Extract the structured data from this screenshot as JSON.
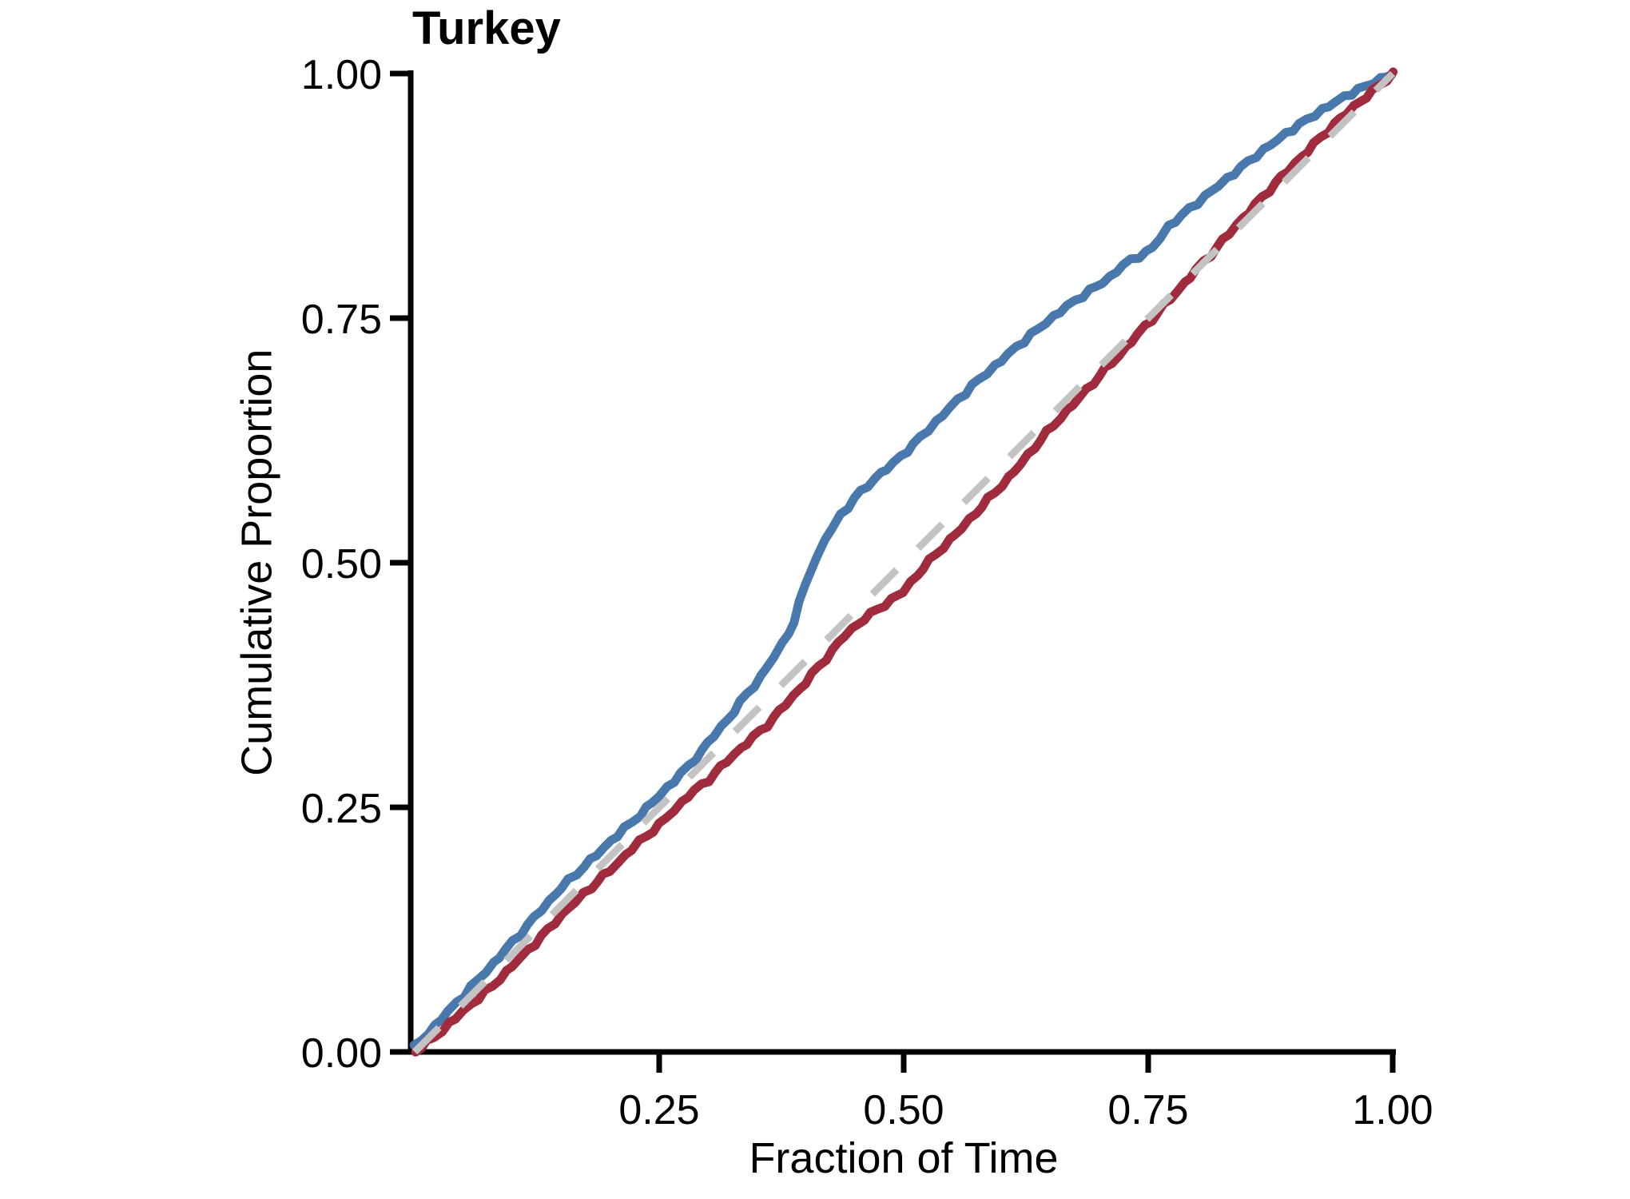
{
  "page": {
    "background": "#FFFFFF"
  },
  "chart": {
    "title": "Turkey",
    "xlabel": "Fraction of Time",
    "ylabel": "Cumulative Proportion",
    "x_ticks": [
      {
        "value": 0.25,
        "label": "0.25"
      },
      {
        "value": 0.5,
        "label": "0.50"
      },
      {
        "value": 0.75,
        "label": "0.75"
      },
      {
        "value": 1.0,
        "label": "1.00"
      }
    ],
    "y_ticks": [
      {
        "value": 0.0,
        "label": "0.00"
      },
      {
        "value": 0.25,
        "label": "0.25"
      },
      {
        "value": 0.5,
        "label": "0.50"
      },
      {
        "value": 0.75,
        "label": "0.75"
      },
      {
        "value": 1.0,
        "label": "1.00"
      }
    ],
    "colors": {
      "axis": "#000000",
      "blue_series": "#4878AC",
      "red_series": "#A02B3C",
      "reference_dashed": "#C3C3C3"
    }
  },
  "chart_data": {
    "type": "line",
    "title": "Turkey",
    "xlabel": "Fraction of Time",
    "ylabel": "Cumulative Proportion",
    "xlim": [
      0,
      1
    ],
    "ylim": [
      0,
      1
    ],
    "grid": false,
    "legend": "none",
    "x_tick_values": [
      0.25,
      0.5,
      0.75,
      1.0
    ],
    "y_tick_values": [
      0.0,
      0.25,
      0.5,
      0.75,
      1.0
    ],
    "reference_line": {
      "name": "diagonal-y-equals-x",
      "style": "dashed",
      "color": "#C3C3C3",
      "from": [
        0,
        0
      ],
      "to": [
        1,
        1
      ]
    },
    "series": [
      {
        "name": "blue",
        "color": "#4878AC",
        "points": [
          [
            0,
            0.005
          ],
          [
            0.02,
            0.026
          ],
          [
            0.05,
            0.058
          ],
          [
            0.08,
            0.09
          ],
          [
            0.1,
            0.112
          ],
          [
            0.13,
            0.146
          ],
          [
            0.15,
            0.168
          ],
          [
            0.18,
            0.196
          ],
          [
            0.2,
            0.215
          ],
          [
            0.23,
            0.242
          ],
          [
            0.25,
            0.262
          ],
          [
            0.28,
            0.292
          ],
          [
            0.3,
            0.316
          ],
          [
            0.32,
            0.34
          ],
          [
            0.34,
            0.366
          ],
          [
            0.36,
            0.392
          ],
          [
            0.375,
            0.416
          ],
          [
            0.388,
            0.44
          ],
          [
            0.4,
            0.478
          ],
          [
            0.41,
            0.505
          ],
          [
            0.42,
            0.524
          ],
          [
            0.435,
            0.548
          ],
          [
            0.45,
            0.566
          ],
          [
            0.47,
            0.586
          ],
          [
            0.49,
            0.602
          ],
          [
            0.51,
            0.621
          ],
          [
            0.54,
            0.651
          ],
          [
            0.57,
            0.681
          ],
          [
            0.6,
            0.707
          ],
          [
            0.63,
            0.733
          ],
          [
            0.66,
            0.757
          ],
          [
            0.69,
            0.778
          ],
          [
            0.71,
            0.791
          ],
          [
            0.725,
            0.805
          ],
          [
            0.74,
            0.813
          ],
          [
            0.755,
            0.822
          ],
          [
            0.77,
            0.843
          ],
          [
            0.8,
            0.868
          ],
          [
            0.83,
            0.892
          ],
          [
            0.86,
            0.916
          ],
          [
            0.89,
            0.938
          ],
          [
            0.92,
            0.958
          ],
          [
            0.95,
            0.976
          ],
          [
            0.98,
            0.991
          ],
          [
            1,
            1
          ]
        ]
      },
      {
        "name": "red",
        "color": "#A02B3C",
        "points": [
          [
            0,
            0
          ],
          [
            0.02,
            0.015
          ],
          [
            0.05,
            0.042
          ],
          [
            0.08,
            0.068
          ],
          [
            0.1,
            0.088
          ],
          [
            0.13,
            0.118
          ],
          [
            0.15,
            0.14
          ],
          [
            0.18,
            0.168
          ],
          [
            0.2,
            0.186
          ],
          [
            0.23,
            0.215
          ],
          [
            0.25,
            0.232
          ],
          [
            0.28,
            0.262
          ],
          [
            0.3,
            0.278
          ],
          [
            0.32,
            0.298
          ],
          [
            0.34,
            0.316
          ],
          [
            0.36,
            0.334
          ],
          [
            0.38,
            0.356
          ],
          [
            0.4,
            0.378
          ],
          [
            0.42,
            0.402
          ],
          [
            0.44,
            0.426
          ],
          [
            0.46,
            0.443
          ],
          [
            0.48,
            0.457
          ],
          [
            0.5,
            0.471
          ],
          [
            0.52,
            0.495
          ],
          [
            0.54,
            0.516
          ],
          [
            0.56,
            0.536
          ],
          [
            0.58,
            0.558
          ],
          [
            0.6,
            0.579
          ],
          [
            0.62,
            0.601
          ],
          [
            0.64,
            0.626
          ],
          [
            0.66,
            0.648
          ],
          [
            0.68,
            0.669
          ],
          [
            0.7,
            0.691
          ],
          [
            0.72,
            0.712
          ],
          [
            0.74,
            0.734
          ],
          [
            0.76,
            0.756
          ],
          [
            0.78,
            0.778
          ],
          [
            0.8,
            0.8
          ],
          [
            0.82,
            0.822
          ],
          [
            0.84,
            0.845
          ],
          [
            0.86,
            0.866
          ],
          [
            0.88,
            0.888
          ],
          [
            0.9,
            0.908
          ],
          [
            0.92,
            0.928
          ],
          [
            0.94,
            0.948
          ],
          [
            0.96,
            0.966
          ],
          [
            0.98,
            0.982
          ],
          [
            1,
            1
          ]
        ]
      }
    ]
  }
}
